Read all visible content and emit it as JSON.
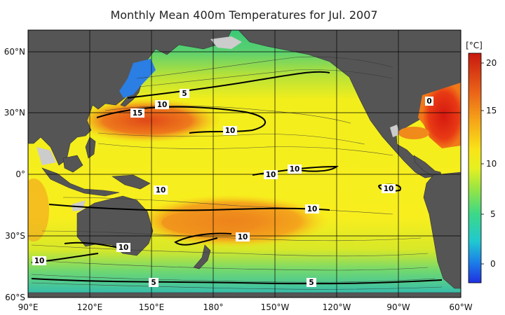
{
  "title": "Monthly Mean 400m Temperatures for Jul. 2007",
  "map": {
    "lon_ticks": [
      "90°E",
      "120°E",
      "150°E",
      "180°",
      "150°W",
      "120°W",
      "90°W",
      "60°W"
    ],
    "lat_ticks": [
      "60°N",
      "30°N",
      "0°",
      "30°S",
      "60°S"
    ],
    "contour_labels": [
      "5",
      "10",
      "15",
      "10",
      "10",
      "10",
      "10",
      "10",
      "10",
      "10",
      "10",
      "10",
      "5",
      "5",
      "0"
    ]
  },
  "colorbar": {
    "unit": "[°C]",
    "ticks": [
      "20",
      "15",
      "10",
      "5",
      "0"
    ],
    "range": [
      -2,
      21
    ],
    "colors": [
      "#2a3ed8",
      "#1e86e4",
      "#20c8d0",
      "#40dc80",
      "#a0e840",
      "#f0f020",
      "#f8c818",
      "#f08818",
      "#e04818",
      "#c01810"
    ]
  },
  "colors": {
    "land": "#555555",
    "ice_shelf": "#cccccc",
    "ocean_warm": "#f7ea1a",
    "ocean_hot": "#e86020",
    "ocean_cool": "#3cd080"
  }
}
